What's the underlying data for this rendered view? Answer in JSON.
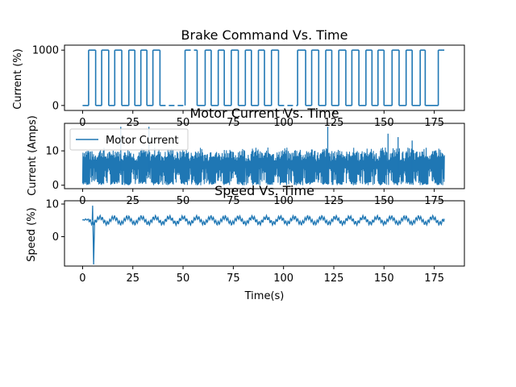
{
  "chart_data": [
    {
      "type": "line",
      "title": "Brake Command Vs. Time",
      "xlabel": "",
      "ylabel": "Current (%)",
      "xlim": [
        -9,
        190
      ],
      "ylim": [
        -90,
        1090
      ],
      "yticks": [
        0,
        1000
      ],
      "xticks": [
        0,
        25,
        50,
        75,
        100,
        125,
        150,
        175
      ],
      "series": [
        {
          "color": "#1f77b4",
          "style": "square-wave",
          "segments": [
            [
              0,
              3,
              0
            ],
            [
              3,
              6.5,
              1000
            ],
            [
              6.5,
              9.5,
              0
            ],
            [
              9.5,
              13,
              1000
            ],
            [
              13,
              16,
              0
            ],
            [
              16,
              19.5,
              1000
            ],
            [
              19.5,
              23,
              0
            ],
            [
              23,
              26,
              1000
            ],
            [
              26,
              29,
              0
            ],
            [
              29,
              32,
              1000
            ],
            [
              32,
              35,
              0
            ],
            [
              35,
              38.5,
              1000
            ],
            [
              38.5,
              51,
              0
            ],
            [
              51,
              57,
              1000
            ],
            [
              57,
              61,
              0
            ],
            [
              61,
              64,
              1000
            ],
            [
              64,
              67.5,
              0
            ],
            [
              67.5,
              70.5,
              1000
            ],
            [
              70.5,
              74,
              0
            ],
            [
              74,
              77.5,
              1000
            ],
            [
              77.5,
              81,
              0
            ],
            [
              81,
              84,
              1000
            ],
            [
              84,
              87.5,
              0
            ],
            [
              87.5,
              90.5,
              1000
            ],
            [
              90.5,
              94,
              0
            ],
            [
              94,
              97.5,
              1000
            ],
            [
              97.5,
              107,
              0
            ],
            [
              107,
              111,
              1000
            ],
            [
              111,
              114,
              0
            ],
            [
              114,
              117.5,
              1000
            ],
            [
              117.5,
              121,
              0
            ],
            [
              121,
              124,
              1000
            ],
            [
              124,
              127.5,
              0
            ],
            [
              127.5,
              131,
              1000
            ],
            [
              131,
              134,
              0
            ],
            [
              134,
              137.5,
              1000
            ],
            [
              137.5,
              141,
              0
            ],
            [
              141,
              144,
              1000
            ],
            [
              144,
              147,
              0
            ],
            [
              147,
              150,
              1000
            ],
            [
              150,
              154,
              0
            ],
            [
              154,
              157.5,
              1000
            ],
            [
              157.5,
              161,
              0
            ],
            [
              161,
              164,
              1000
            ],
            [
              164,
              168,
              0
            ],
            [
              168,
              170.5,
              1000
            ],
            [
              170.5,
              177,
              0
            ],
            [
              177,
              180,
              1000
            ]
          ]
        }
      ]
    },
    {
      "type": "line",
      "title": "Motor Current Vs. Time",
      "xlabel": "",
      "ylabel": "Current (Amps)",
      "xlim": [
        -9,
        190
      ],
      "ylim": [
        -1,
        18
      ],
      "yticks": [
        0,
        10
      ],
      "xticks": [
        0,
        25,
        50,
        75,
        100,
        125,
        150,
        175
      ],
      "legend": "top-left",
      "series": [
        {
          "name": "Motor Current",
          "color": "#1f77b4",
          "pattern": "rapid oscillation",
          "low": 0,
          "high": 10,
          "spikes": [
            [
              19,
              17
            ],
            [
              33,
              17
            ],
            [
              122,
              17
            ],
            [
              152,
              15
            ],
            [
              157,
              14
            ],
            [
              164,
              13
            ]
          ]
        }
      ]
    },
    {
      "type": "line",
      "title": "Speed Vs. Time",
      "xlabel": "Time(s)",
      "ylabel": "Speed (%)",
      "xlim": [
        -9,
        190
      ],
      "ylim": [
        -9,
        11
      ],
      "yticks": [
        0,
        10
      ],
      "xticks": [
        0,
        25,
        50,
        75,
        100,
        125,
        150,
        175
      ],
      "series": [
        {
          "color": "#1f77b4",
          "pattern": "oscillation",
          "baseline": 5,
          "amplitude": 1.5,
          "transients": [
            [
              5,
              9.5
            ],
            [
              5.5,
              -8.5
            ]
          ]
        }
      ]
    }
  ]
}
